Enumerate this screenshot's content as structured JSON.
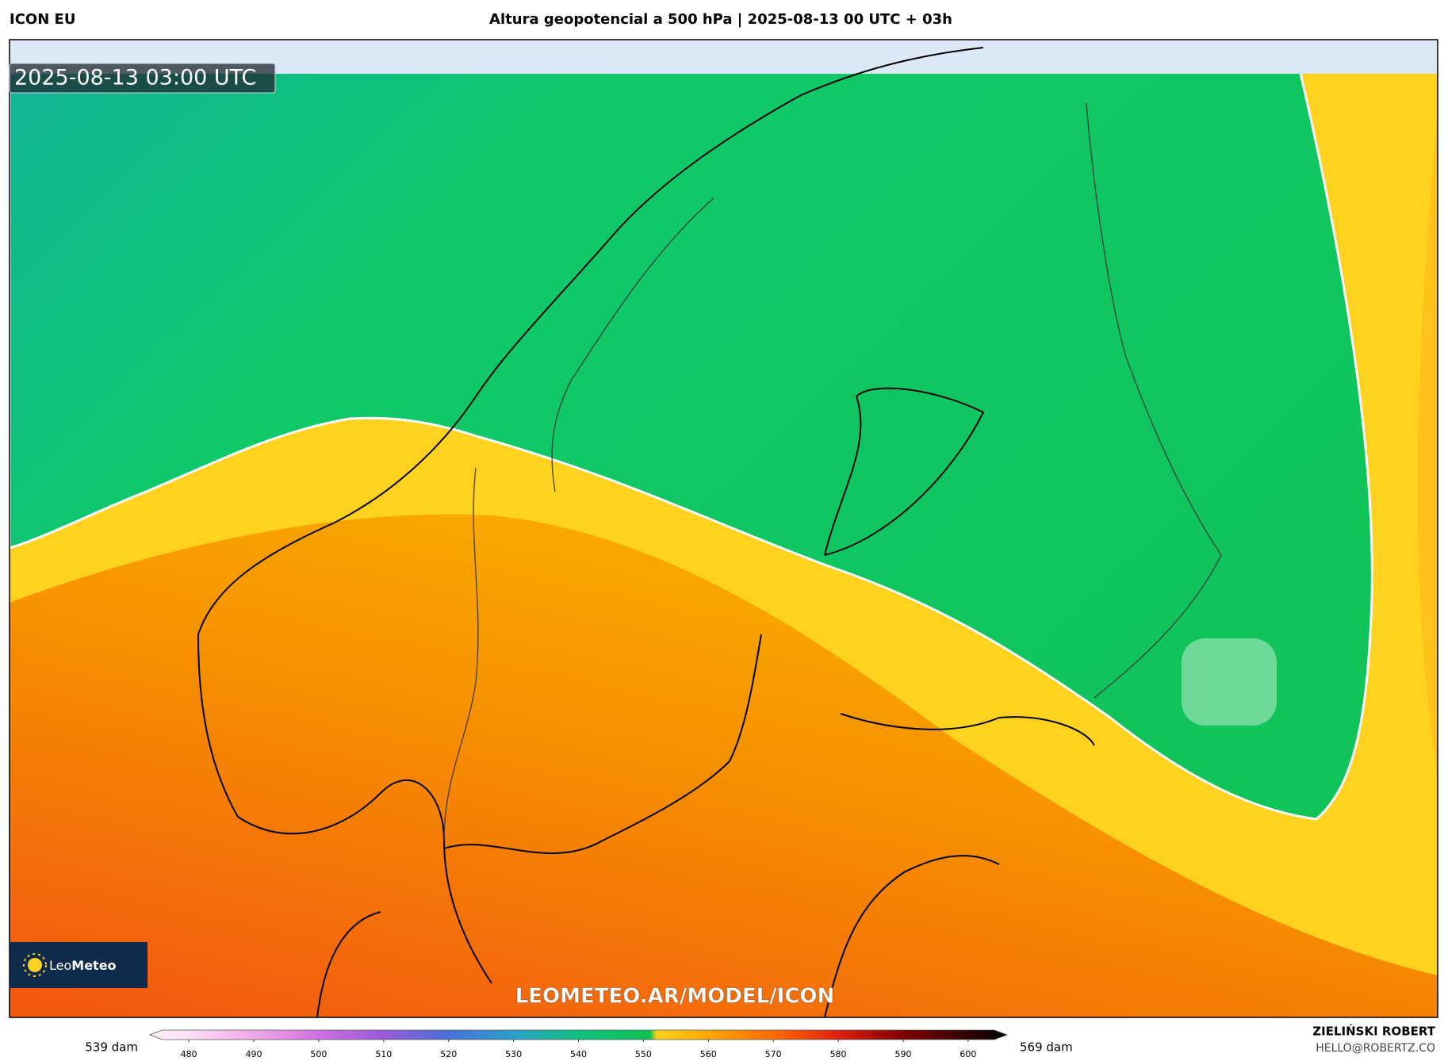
{
  "header": {
    "model": "ICON EU",
    "title": "Altura geopotencial a 500 hPa | 2025-08-13 00 UTC + 03h"
  },
  "map": {
    "timestamp": "2025-08-13 03:00 UTC",
    "watermark": "LEOMETEO.AR/MODEL/ICON"
  },
  "logo": {
    "parts": [
      "Leo",
      "Meteo"
    ]
  },
  "colorbar": {
    "min_label": "539 dam",
    "max_label": "569 dam",
    "lim": [
      474,
      606
    ],
    "ticks": [
      480,
      490,
      500,
      510,
      520,
      530,
      540,
      550,
      560,
      570,
      580,
      590,
      600
    ],
    "stops": [
      {
        "value": 474,
        "color": "#fff0fa"
      },
      {
        "value": 480,
        "color": "#fde0f4"
      },
      {
        "value": 490,
        "color": "#f0a8e8"
      },
      {
        "value": 500,
        "color": "#d070e0"
      },
      {
        "value": 510,
        "color": "#9a5ad8"
      },
      {
        "value": 520,
        "color": "#4a70d8"
      },
      {
        "value": 530,
        "color": "#2aa0c8"
      },
      {
        "value": 540,
        "color": "#10c080"
      },
      {
        "value": 551,
        "color": "#10c050"
      },
      {
        "value": 552,
        "color": "#ffd21f"
      },
      {
        "value": 560,
        "color": "#ffa800"
      },
      {
        "value": 570,
        "color": "#ff6a00"
      },
      {
        "value": 580,
        "color": "#e02010"
      },
      {
        "value": 590,
        "color": "#800000"
      },
      {
        "value": 606,
        "color": "#000000"
      }
    ]
  },
  "credits": {
    "author": "ZIELIŃSKI ROBERT",
    "email": "HELLO@ROBERTZ.CO"
  }
}
